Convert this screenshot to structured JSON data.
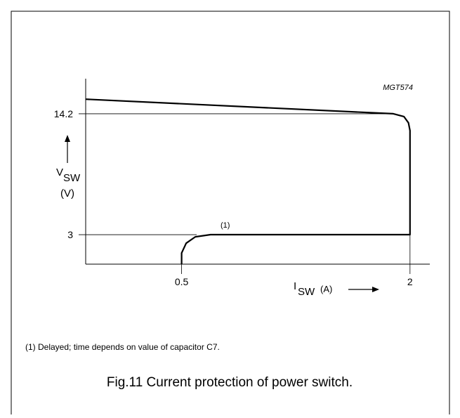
{
  "chart_data": {
    "type": "line",
    "figure_id": "MGT574",
    "caption": "Fig.11  Current protection of power switch.",
    "footnote": "(1)  Delayed; time depends on value of capacitor C7.",
    "annotation": "(1)",
    "x_label_symbol": "I",
    "x_label_subscript": "SW",
    "x_label_unit": "(A)",
    "y_label_symbol": "V",
    "y_label_subscript": "SW",
    "y_label_unit": "(V)",
    "x": [
      -0.13,
      1.89,
      1.96,
      1.99,
      2,
      2,
      0.69,
      0.59,
      0.53,
      0.5,
      0.5
    ],
    "series": [
      {
        "name": null,
        "color": "#000000",
        "values": [
          15.55,
          14.2,
          13.94,
          13.36,
          12.64,
          3,
          3,
          2.8,
          2.21,
          1.3,
          0.27
        ]
      }
    ],
    "xlim": [
      -0.13,
      2.13
    ],
    "ylim": [
      0.27,
      17.45
    ],
    "xticks": [
      0.5,
      2
    ],
    "yticks": [
      3,
      14.2
    ]
  }
}
